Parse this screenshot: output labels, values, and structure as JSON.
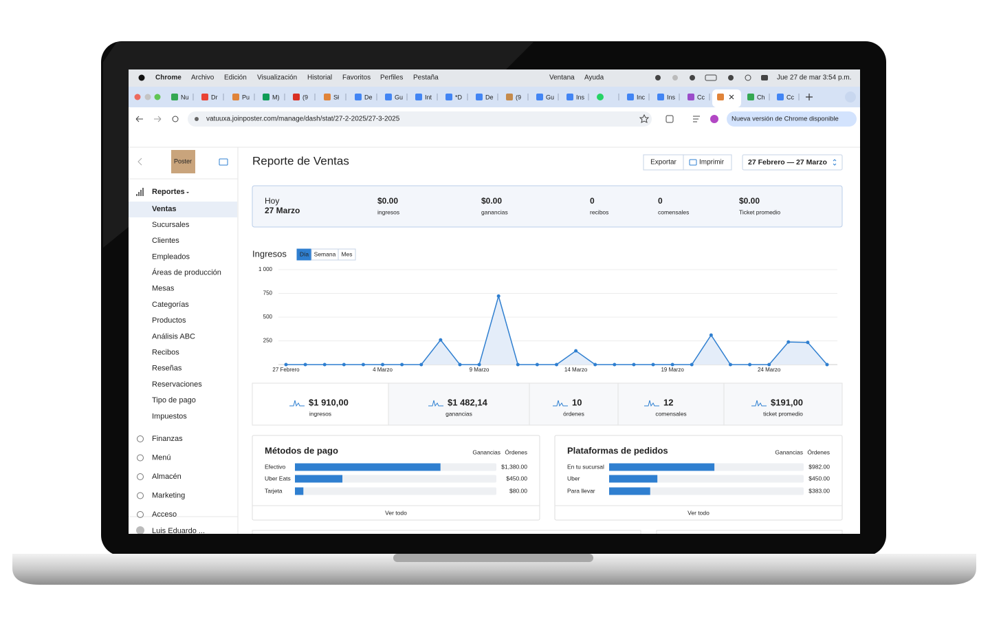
{
  "menu_bar": {
    "app": "Chrome",
    "items": [
      "Archivo",
      "Edición",
      "Visualización",
      "Historial",
      "Favoritos",
      "Perfiles",
      "Pestaña",
      "Ventana",
      "Ayuda"
    ],
    "clock": "Jue 27 de mar 3:54 p.m."
  },
  "tabs": [
    "Nu",
    "Dr",
    "Pu",
    "M)",
    "(9",
    "Sł",
    "De",
    "Gu",
    "Int",
    "*D",
    "De",
    "(9",
    "Gu",
    "Ins",
    "Inc",
    "Ins",
    "Cc",
    "Ch",
    "Cc"
  ],
  "address_bar": {
    "url": "vatuuxa.joinposter.com/manage/dash/stat/27-2-2025/27-3-2025",
    "update": "Nueva versión de Chrome disponible"
  },
  "sidebar": {
    "logo": "Poster",
    "section": "Reportes",
    "active": "Ventas",
    "items": [
      "Sucursales",
      "Clientes",
      "Empleados",
      "Áreas de producción",
      "Mesas",
      "Categorías",
      "Productos",
      "Análisis ABC",
      "Recibos",
      "Reseñas",
      "Reservaciones",
      "Tipo de pago",
      "Impuestos"
    ],
    "groups": [
      "Finanzas",
      "Menú",
      "Almacén",
      "Marketing",
      "Acceso"
    ],
    "user": "Luis Eduardo ..."
  },
  "header": {
    "title": "Reporte de Ventas",
    "buttons": [
      "Exportar",
      "Imprimir"
    ],
    "date_range": "27 Febrero — 27 Marzo"
  },
  "today": {
    "label": "Hoy",
    "date": "27 Marzo",
    "stats": [
      {
        "value": "$0.00",
        "label": "ingresos"
      },
      {
        "value": "$0.00",
        "label": "ganancias"
      },
      {
        "value": "0",
        "label": "recibos"
      },
      {
        "value": "0",
        "label": "comensales"
      },
      {
        "value": "$0.00",
        "label": "Ticket promedio"
      }
    ]
  },
  "totals": [
    {
      "value": "$1 910,00",
      "label": "ingresos"
    },
    {
      "value": "$1 482,14",
      "label": "ganancias"
    },
    {
      "value": "10",
      "label": "órdenes"
    },
    {
      "value": "12",
      "label": "comensales"
    },
    {
      "value": "$191,00",
      "label": "ticket promedio"
    }
  ],
  "chart_data": [
    {
      "type": "line",
      "title": "Ingresos",
      "periods": [
        "Día",
        "Semana",
        "Mes"
      ],
      "categories": [
        "27 Febrero",
        null,
        null,
        null,
        null,
        "4 Marzo",
        null,
        null,
        null,
        null,
        "9 Marzo",
        null,
        null,
        null,
        null,
        "14 Marzo",
        null,
        null,
        null,
        null,
        "19 Marzo",
        null,
        null,
        null,
        null,
        "24 Marzo",
        null,
        null,
        null
      ],
      "values": [
        0,
        0,
        0,
        0,
        0,
        0,
        0,
        0,
        260,
        0,
        0,
        722,
        0,
        0,
        0,
        145,
        0,
        0,
        0,
        0,
        0,
        0,
        311,
        0,
        0,
        0,
        238,
        234,
        0
      ],
      "color": "#2f7fd0",
      "ylim": [
        0,
        1000
      ],
      "yticks": [
        250,
        500,
        750,
        {
          "value": 1000,
          "label": "1 000"
        }
      ],
      "grid": true
    },
    {
      "type": "bar",
      "title": "Métodos de pago",
      "options": [
        "Ganancias",
        "Órdenes"
      ],
      "categories": [
        "Efectivo",
        "Uber Eats",
        "Tarjeta"
      ],
      "values": [
        1380,
        450,
        80
      ],
      "value_labels": [
        "$1,380.00",
        "$450.00",
        "$80.00"
      ],
      "color": "#2f7fd0",
      "footer": "Ver todo"
    },
    {
      "type": "bar",
      "title": "Plataformas de pedidos",
      "options": [
        "Ganancias",
        "Órdenes"
      ],
      "categories": [
        "En tu sucursal",
        "Uber",
        "Para llevar"
      ],
      "values": [
        982,
        450,
        383
      ],
      "value_labels": [
        "$982.00",
        "$450.00",
        "$383.00"
      ],
      "color": "#2f7fd0",
      "footer": "Ver todo"
    }
  ]
}
